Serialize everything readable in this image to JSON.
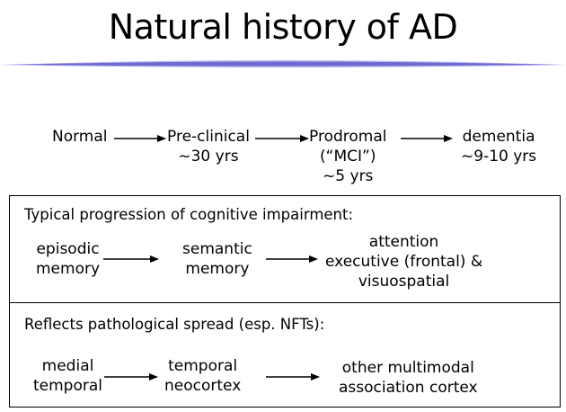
{
  "title": "Natural history of AD",
  "timeline": {
    "stage1": [
      "Normal"
    ],
    "stage2": [
      "Pre-clinical",
      "~30 yrs"
    ],
    "stage3": [
      "Prodromal",
      "(“MCI”)",
      "~5 yrs"
    ],
    "stage4": [
      "dementia",
      "~9-10 yrs"
    ]
  },
  "cognitive": {
    "heading": "Typical progression of cognitive impairment:",
    "step1": [
      "episodic",
      "memory"
    ],
    "step2": [
      "semantic",
      "memory"
    ],
    "step3": [
      "attention",
      "executive (frontal) &",
      "visuospatial"
    ]
  },
  "pathology": {
    "heading": "Reflects pathological spread (esp. NFTs):",
    "step1": [
      "medial",
      "temporal"
    ],
    "step2": [
      "temporal",
      "neocortex"
    ],
    "step3": [
      "other multimodal",
      "association cortex"
    ]
  },
  "colors": {
    "divider": "#8a86d9",
    "divider_core": "#4b46b8"
  }
}
